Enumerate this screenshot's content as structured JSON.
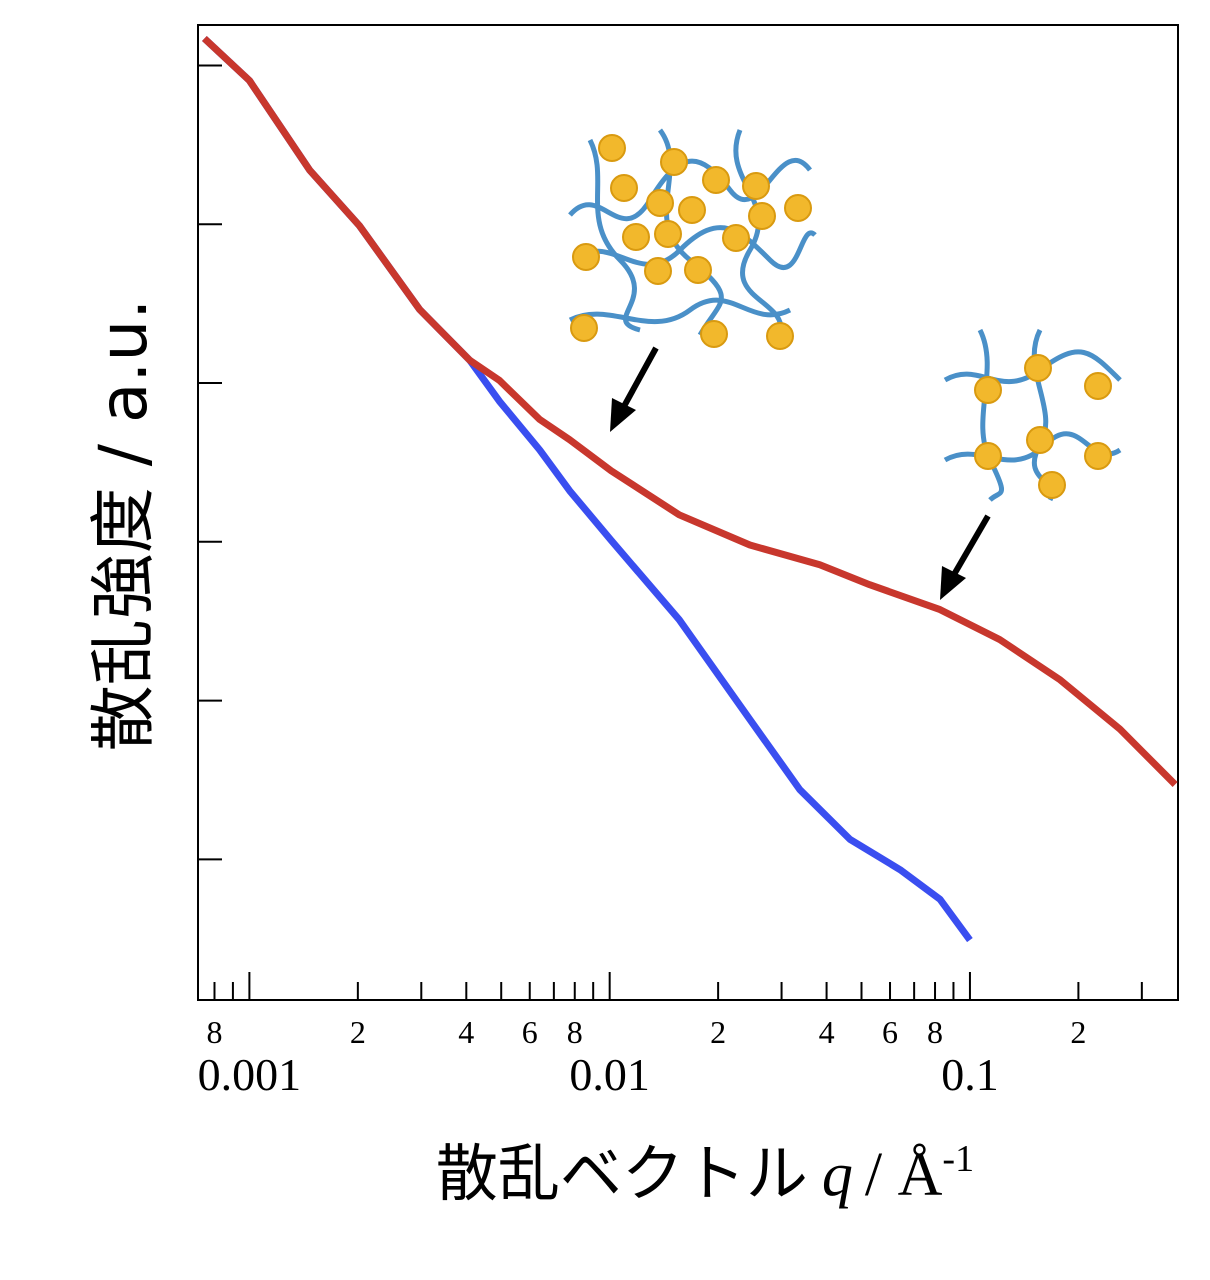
{
  "chart_data": {
    "type": "line",
    "x_scale": "log",
    "y_scale": "log",
    "y_label": "散乱強度 / a.u.",
    "x_label": {
      "text": "散乱ベクトル",
      "variable": "q",
      "unit": "/ Å",
      "unit_exponent": "-1"
    },
    "xlim": [
      0.00072,
      0.378
    ],
    "ylim": [
      1.3,
      1800000
    ],
    "xticks": [
      {
        "value": 0.0008,
        "label": "8"
      },
      0.001,
      {
        "value": 0.002,
        "label": "2"
      },
      {
        "value": 0.004,
        "label": "4"
      },
      {
        "value": 0.006,
        "label": "6"
      },
      {
        "value": 0.008,
        "label": "8"
      },
      0.01,
      {
        "value": 0.02,
        "label": "2"
      },
      {
        "value": 0.04,
        "label": "4"
      },
      {
        "value": 0.06,
        "label": "6"
      },
      {
        "value": 0.08,
        "label": "8"
      },
      0.1,
      {
        "value": 0.2,
        "label": "2"
      }
    ],
    "xminorticks": [
      0.0009,
      0.003,
      0.005,
      0.007,
      0.009,
      0.03,
      0.05,
      0.07,
      0.09,
      0.3
    ],
    "yticks": [
      10,
      100,
      1000,
      10000,
      100000,
      1000000
    ],
    "ytick_labels": false,
    "series": [
      {
        "color": "#c8372d",
        "x": [
          0.00075,
          0.001,
          0.00147,
          0.00202,
          0.00297,
          0.00409,
          0.00494,
          0.00639,
          0.00774,
          0.0101,
          0.0156,
          0.0245,
          0.0383,
          0.0527,
          0.0826,
          0.121,
          0.178,
          0.261,
          0.371
        ],
        "values": [
          1480000,
          805000,
          219000,
          98000,
          29000,
          13900,
          10400,
          5900,
          4400,
          2800,
          1480,
          955,
          716,
          537,
          374,
          242,
          135,
          66,
          29.6
        ]
      },
      {
        "color": "#3a4ef0",
        "x": [
          0.00075,
          0.001,
          0.00147,
          0.00202,
          0.00297,
          0.00409,
          0.00494,
          0.00639,
          0.00774,
          0.0101,
          0.0156,
          0.0245,
          0.0337,
          0.0464,
          0.064,
          0.0826,
          0.1
        ],
        "values": [
          1480000,
          805000,
          219000,
          98000,
          29000,
          13900,
          7700,
          3800,
          2100,
          1020,
          323,
          76,
          27.5,
          13.4,
          8.6,
          5.6,
          3.1
        ]
      }
    ]
  }
}
